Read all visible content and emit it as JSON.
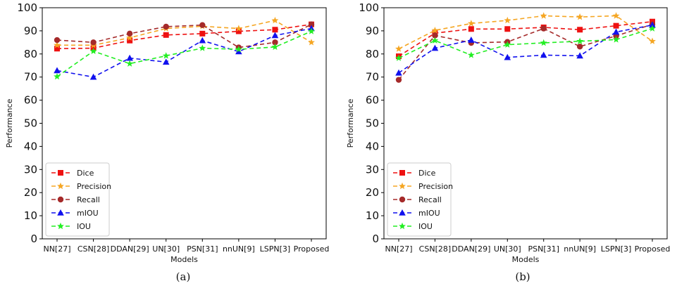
{
  "chart_data": [
    {
      "type": "line",
      "caption": "(a)",
      "xlabel": "Models",
      "ylabel": "Performance",
      "ylim": [
        0,
        100
      ],
      "yticks": [
        0,
        10,
        20,
        30,
        40,
        50,
        60,
        70,
        80,
        90,
        100
      ],
      "categories": [
        "NN[27]",
        "CSN[28]",
        "DDAN[29]",
        "UN[30]",
        "PSN[31]",
        "nnUN[9]",
        "LSPN[3]",
        "Proposed"
      ],
      "legend_position": "lower-left",
      "series": [
        {
          "name": "Dice",
          "color": "#ee1111",
          "marker": "square",
          "values": [
            82.3,
            82.5,
            85.8,
            88.2,
            88.8,
            89.8,
            90.5,
            92.8
          ]
        },
        {
          "name": "Precision",
          "color": "#f5a623",
          "marker": "star",
          "values": [
            83.8,
            83.8,
            87.0,
            91.0,
            92.0,
            91.0,
            94.5,
            85.0
          ]
        },
        {
          "name": "Recall",
          "color": "#a52a2a",
          "marker": "circle",
          "values": [
            86.0,
            85.0,
            88.8,
            91.8,
            92.5,
            82.8,
            85.0,
            92.8
          ]
        },
        {
          "name": "mIOU",
          "color": "#1111ee",
          "marker": "triangle",
          "values": [
            72.8,
            70.0,
            78.2,
            76.5,
            85.8,
            81.0,
            88.0,
            91.0
          ]
        },
        {
          "name": "IOU",
          "color": "#22ee22",
          "marker": "star",
          "values": [
            70.2,
            81.2,
            75.8,
            79.2,
            82.5,
            82.0,
            83.0,
            89.8
          ]
        }
      ]
    },
    {
      "type": "line",
      "caption": "(b)",
      "xlabel": "Models",
      "ylabel": "Performance",
      "ylim": [
        0,
        100
      ],
      "yticks": [
        0,
        10,
        20,
        30,
        40,
        50,
        60,
        70,
        80,
        90,
        100
      ],
      "categories": [
        "NN[27]",
        "CSN[28]",
        "DDAN[29]",
        "UN[30]",
        "PSN[31]",
        "nnUN[9]",
        "LSPN[3]",
        "Proposed"
      ],
      "legend_position": "lower-left",
      "series": [
        {
          "name": "Dice",
          "color": "#ee1111",
          "marker": "square",
          "values": [
            79.0,
            89.0,
            90.8,
            90.8,
            91.5,
            90.5,
            92.2,
            94.0
          ]
        },
        {
          "name": "Precision",
          "color": "#f5a623",
          "marker": "star",
          "values": [
            82.2,
            90.2,
            93.2,
            94.5,
            96.5,
            96.0,
            96.5,
            85.5
          ]
        },
        {
          "name": "Recall",
          "color": "#a52a2a",
          "marker": "circle",
          "values": [
            68.8,
            88.0,
            84.8,
            85.2,
            91.0,
            83.2,
            87.8,
            92.8
          ]
        },
        {
          "name": "mIOU",
          "color": "#1111ee",
          "marker": "triangle",
          "values": [
            71.8,
            82.5,
            86.0,
            78.5,
            79.5,
            79.2,
            89.5,
            92.5
          ]
        },
        {
          "name": "IOU",
          "color": "#22ee22",
          "marker": "star",
          "values": [
            78.2,
            85.8,
            79.5,
            84.0,
            84.8,
            85.5,
            86.2,
            91.0
          ]
        }
      ]
    }
  ]
}
